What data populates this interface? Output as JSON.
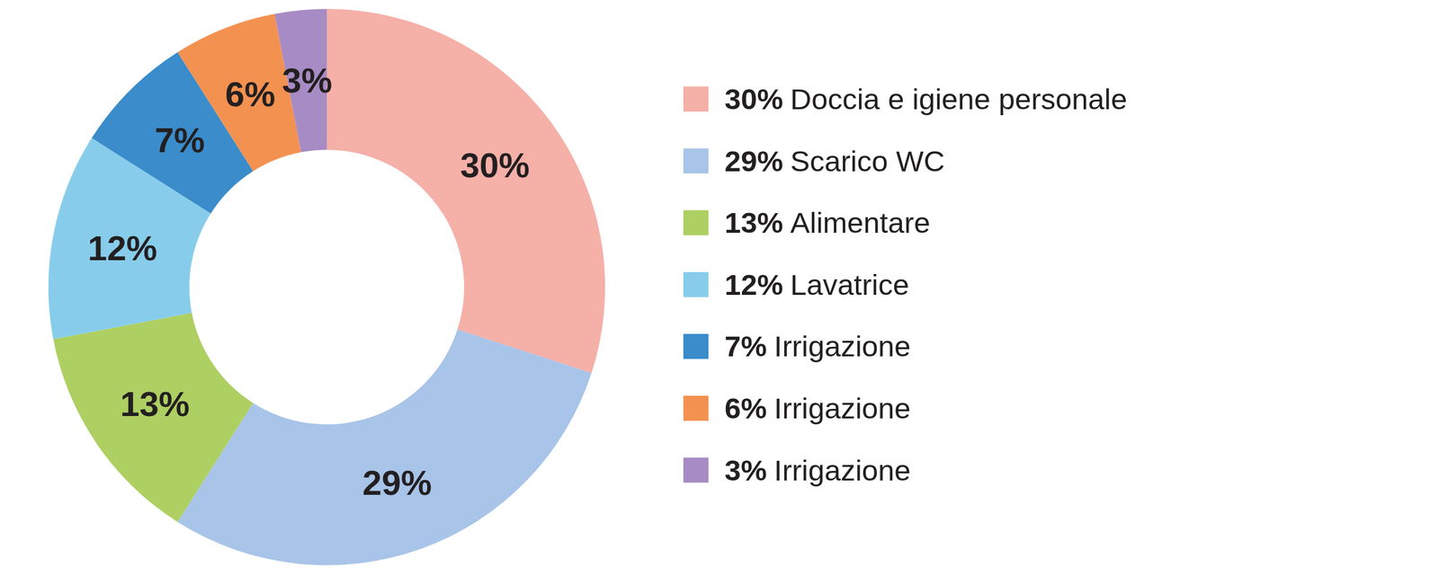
{
  "chart_data": {
    "type": "donut",
    "categories": [
      "Doccia e igiene personale",
      "Scarico WC",
      "Alimentare",
      "Lavatrice",
      "Irrigazione",
      "Irrigazione",
      "Irrigazione"
    ],
    "values": [
      30,
      29,
      13,
      12,
      7,
      6,
      3
    ],
    "value_labels": [
      "30%",
      "29%",
      "13%",
      "12%",
      "7%",
      "6%",
      "3%"
    ],
    "colors": [
      "#f5b0a8",
      "#a8c4e8",
      "#aecf62",
      "#87cdeb",
      "#3a8ccb",
      "#f39150",
      "#a78bc4"
    ],
    "data_labels": true,
    "legend": "right"
  }
}
